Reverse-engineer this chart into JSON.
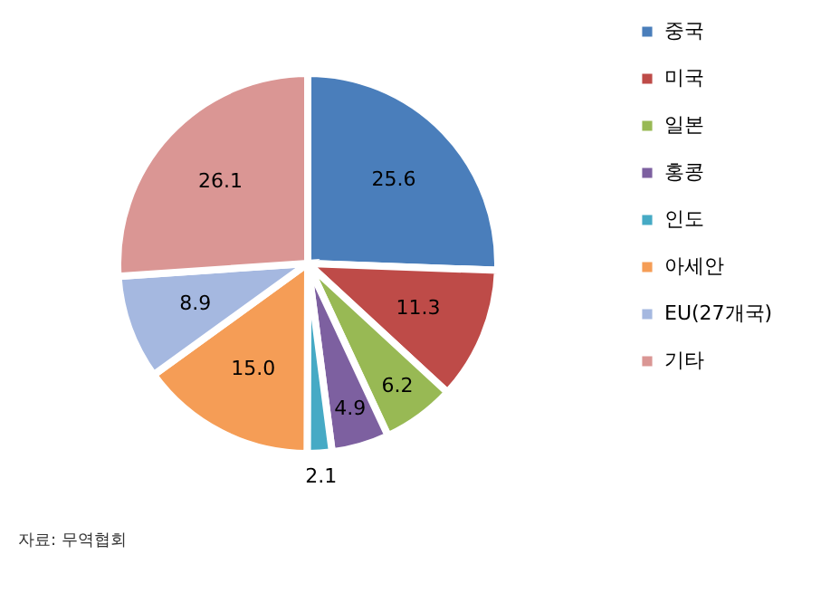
{
  "chart_data": {
    "type": "pie",
    "categories": [
      "중국",
      "미국",
      "일본",
      "홍콩",
      "인도",
      "아세안",
      "EU(27개국)",
      "기타"
    ],
    "values": [
      25.6,
      11.3,
      6.2,
      4.9,
      2.1,
      15.0,
      8.9,
      26.1
    ],
    "value_labels": [
      "25.6",
      "11.3",
      "6.2",
      "4.9",
      "2.1",
      "15.0",
      "8.9",
      "26.1"
    ],
    "colors": [
      "#4a7ebb",
      "#be4b48",
      "#98b954",
      "#7d60a0",
      "#46aac5",
      "#f59d56",
      "#a5b8e0",
      "#da9694"
    ],
    "legend": "right",
    "annotations": [
      "자료: 무역협회"
    ]
  }
}
